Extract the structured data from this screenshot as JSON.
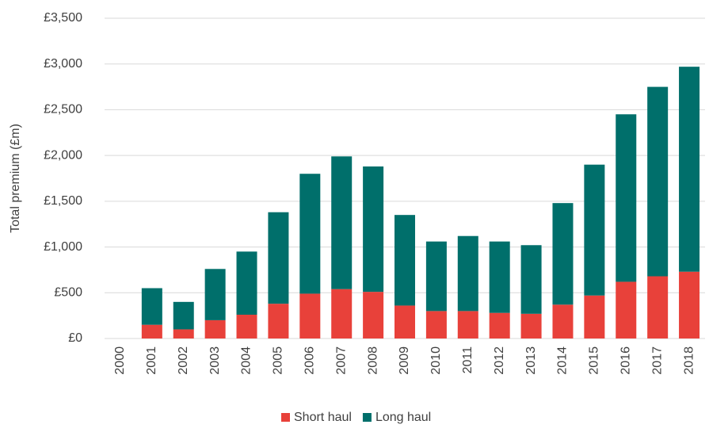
{
  "chart_data": {
    "type": "bar",
    "stacked": true,
    "y_label": "Total premium (£m)",
    "categories": [
      "2000",
      "2001",
      "2002",
      "2003",
      "2004",
      "2005",
      "2006",
      "2007",
      "2008",
      "2009",
      "2010",
      "2011",
      "2012",
      "2013",
      "2014",
      "2015",
      "2016",
      "2017",
      "2018"
    ],
    "series": [
      {
        "name": "Short haul",
        "color": "#e8413a",
        "values": [
          null,
          150,
          100,
          200,
          260,
          380,
          490,
          540,
          510,
          360,
          300,
          300,
          280,
          270,
          370,
          470,
          620,
          680,
          730
        ]
      },
      {
        "name": "Long haul",
        "color": "#006f6b",
        "values": [
          null,
          400,
          300,
          560,
          690,
          1000,
          1310,
          1450,
          1370,
          990,
          760,
          820,
          780,
          750,
          1110,
          1430,
          1830,
          2070,
          2240
        ]
      }
    ],
    "ylim": [
      0,
      3500
    ],
    "yticks": [
      {
        "value": 0,
        "label": "£0"
      },
      {
        "value": 500,
        "label": "£500"
      },
      {
        "value": 1000,
        "label": "£1,000"
      },
      {
        "value": 1500,
        "label": "£1,500"
      },
      {
        "value": 2000,
        "label": "£2,000"
      },
      {
        "value": 2500,
        "label": "£2,500"
      },
      {
        "value": 3000,
        "label": "£3,000"
      },
      {
        "value": 3500,
        "label": "£3,500"
      }
    ],
    "grid": true,
    "legend": "bottom"
  }
}
